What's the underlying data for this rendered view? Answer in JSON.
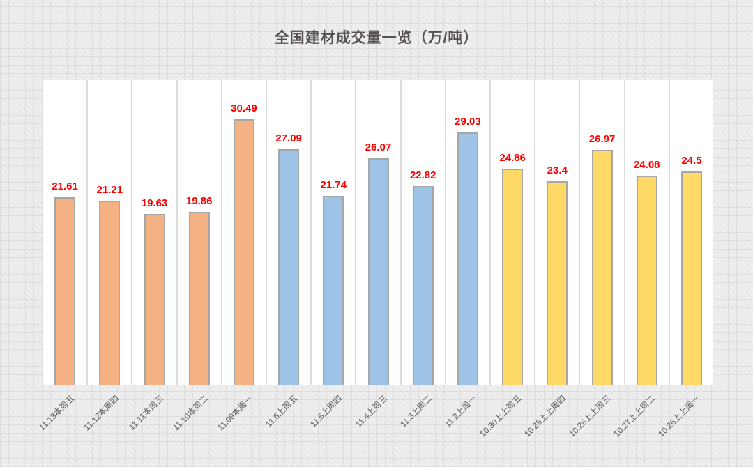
{
  "chart_data": {
    "type": "bar",
    "title": "全国建材成交量一览（万/吨）",
    "categories": [
      "11.13本周五",
      "11.12本周四",
      "11.11本周三",
      "11.10本周二",
      "11.09本周一",
      "11.6上周五",
      "11.5上周四",
      "11.4上周三",
      "11.3上周二",
      "11.2上周一",
      "10.30上上周五",
      "10.29上上周四",
      "10.28上上周三",
      "10.27上上周二",
      "10.26上上周一"
    ],
    "values": [
      21.61,
      21.21,
      19.63,
      19.86,
      30.49,
      27.09,
      21.74,
      26.07,
      22.82,
      29.03,
      24.86,
      23.4,
      26.97,
      24.08,
      24.5
    ],
    "bar_colors": [
      "#F4B183",
      "#F4B183",
      "#F4B183",
      "#F4B183",
      "#F4B183",
      "#9DC3E6",
      "#9DC3E6",
      "#9DC3E6",
      "#9DC3E6",
      "#9DC3E6",
      "#FFD966",
      "#FFD966",
      "#FFD966",
      "#FFD966",
      "#FFD966"
    ],
    "data_labels": [
      "21.61",
      "21.21",
      "19.63",
      "19.86",
      "30.49",
      "27.09",
      "21.74",
      "26.07",
      "22.82",
      "29.03",
      "24.86",
      "23.4",
      "26.97",
      "24.08",
      "24.5"
    ],
    "xlabel": "",
    "ylabel": "",
    "ylim": [
      0,
      35
    ],
    "legend": "none",
    "grid": "vertical-column-separators"
  },
  "style": {
    "background_color": "#ebebeb",
    "plot_background": "#ffffff",
    "column_separator": "#dcdcdc",
    "bar_border_color": "#a6a6a6",
    "title_color": "#575050",
    "data_label_color": "#ff0000",
    "axis_label_color": "#595959"
  }
}
